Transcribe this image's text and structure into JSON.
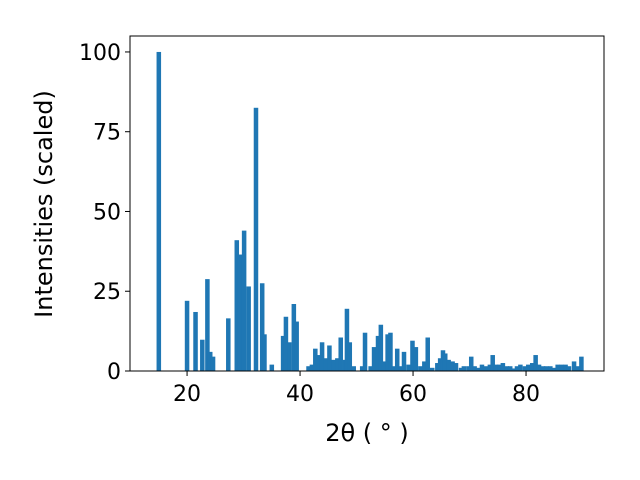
{
  "chart_data": {
    "type": "bar",
    "color": "#1f77b4",
    "bar_width": 0.8,
    "xlabel": "2θ ( ° )",
    "ylabel": "Intensities (scaled)",
    "xlim": [
      9.9,
      93.8
    ],
    "ylim": [
      0,
      105
    ],
    "xticks": [
      20,
      40,
      60,
      80
    ],
    "yticks": [
      0,
      25,
      50,
      75,
      100
    ],
    "x": [
      15,
      20,
      21.5,
      22.7,
      23.6,
      24.1,
      24.6,
      27.3,
      28.8,
      29.4,
      30.1,
      30.9,
      32.2,
      33.3,
      33.7,
      35,
      37.0,
      37.5,
      38.1,
      38.9,
      39.4,
      41.5,
      42.1,
      42.7,
      43.4,
      43.9,
      44.5,
      45.2,
      45.9,
      46.6,
      47.2,
      48.0,
      48.3,
      48.8,
      49.5,
      51.0,
      51.5,
      52.5,
      53.1,
      53.8,
      54.3,
      54.9,
      55.5,
      56,
      56.6,
      57.2,
      57.9,
      58.4,
      59.2,
      59.9,
      60.5,
      61.3,
      62,
      62.6,
      63.4,
      64.3,
      64.8,
      65.3,
      65.7,
      66.3,
      67,
      67.6,
      68.5,
      69,
      69.8,
      70.3,
      70.9,
      71.6,
      72.2,
      72.9,
      73.6,
      74.1,
      74.7,
      75.3,
      75.9,
      76.6,
      77.2,
      77.8,
      78.4,
      79,
      79.8,
      80.4,
      81.1,
      81.7,
      82.3,
      83,
      83.6,
      84.3,
      85,
      85.6,
      86.3,
      87,
      87.6,
      88.5,
      89.2,
      89.8
    ],
    "values": [
      100,
      22,
      18.5,
      9.8,
      28.8,
      6,
      4.5,
      16.5,
      41,
      36.5,
      44,
      26.5,
      82.5,
      27.5,
      11.5,
      2,
      11,
      17,
      9,
      21,
      15.5,
      1.5,
      2,
      7,
      5,
      9,
      4,
      8,
      3.5,
      4,
      10.5,
      3.5,
      19.5,
      9,
      1.5,
      1.5,
      12,
      1.5,
      7.5,
      11,
      14.5,
      3,
      11.5,
      12,
      1.5,
      7,
      1.5,
      6,
      2,
      9.5,
      7.5,
      1.5,
      3,
      10.5,
      1,
      2.5,
      4,
      6.5,
      5.5,
      3.5,
      3,
      2.5,
      1,
      1.5,
      1.5,
      4.5,
      1.5,
      1,
      2,
      1.5,
      2,
      5,
      2,
      2,
      2.5,
      1.5,
      1.5,
      0.8,
      1.5,
      2,
      1.5,
      2,
      2.5,
      5,
      2,
      1.5,
      1.5,
      1.5,
      1,
      2,
      2,
      2,
      1.5,
      3,
      1.5,
      4.5
    ]
  }
}
